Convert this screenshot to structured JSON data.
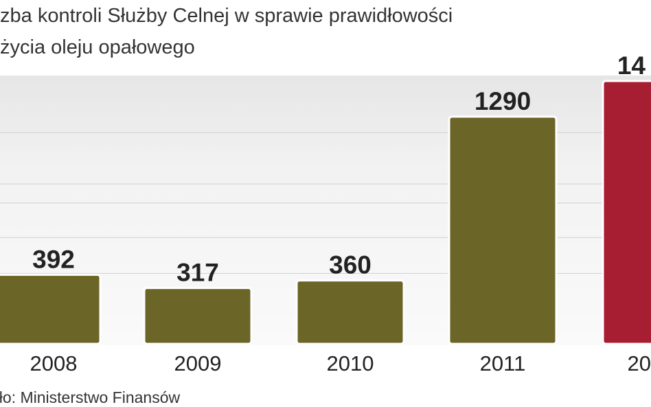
{
  "title_lines": [
    "zba kontroli Służby Celnej w sprawie prawidłowości",
    "życia oleju opałowego"
  ],
  "source": "dło: Ministerstwo Finansów",
  "colors": {
    "bar": "#6b6527",
    "highlight_bar": "#a71d31",
    "grid": "#d0d0d0"
  },
  "chart_data": {
    "type": "bar",
    "categories": [
      "2008",
      "2009",
      "2010",
      "2011",
      "20"
    ],
    "values": [
      392,
      317,
      360,
      1290,
      14
    ],
    "value_labels": [
      "392",
      "317",
      "360",
      "1290",
      "14"
    ],
    "true_values_note": null,
    "highlight_index": 4,
    "ylim": [
      0,
      1600
    ],
    "grid": true
  }
}
